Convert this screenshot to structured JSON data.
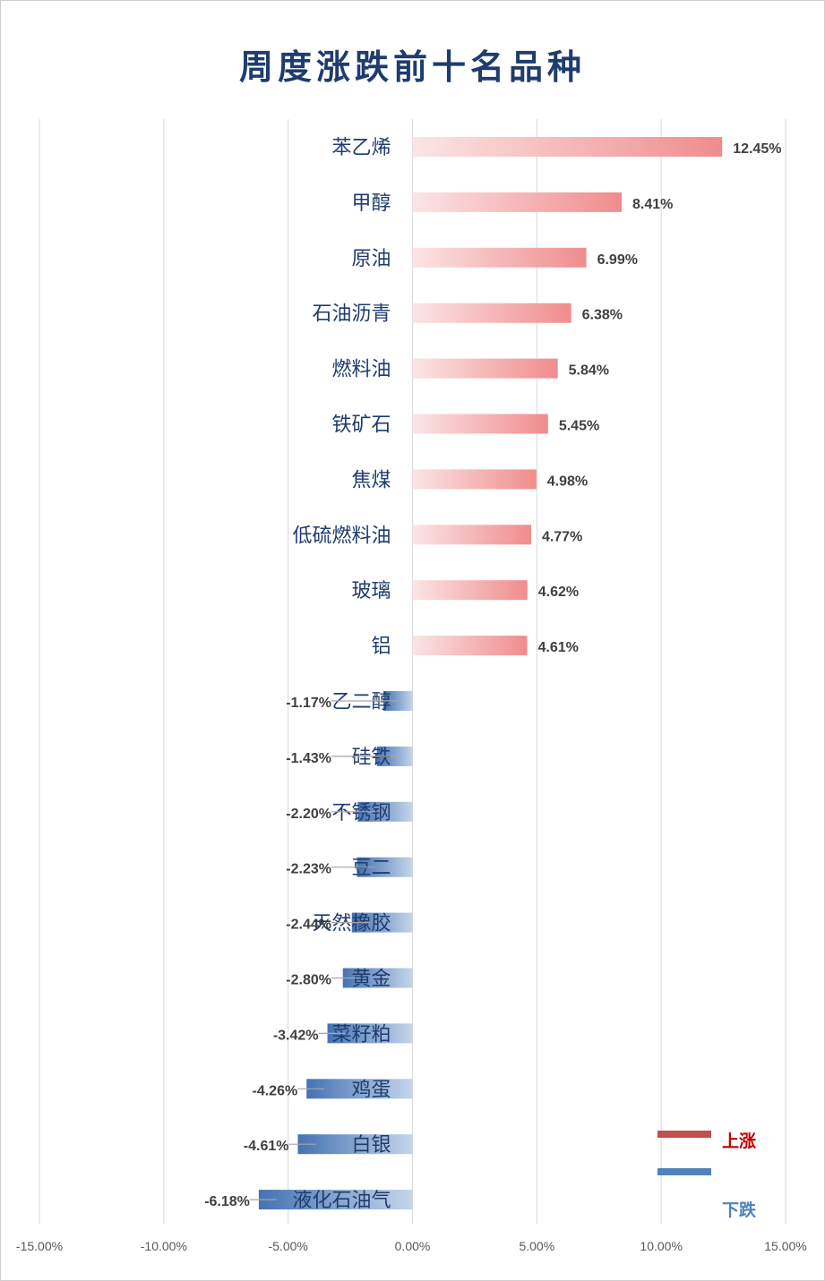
{
  "chart_data": {
    "type": "bar",
    "orientation": "horizontal",
    "title": "周度涨跌前十名品种",
    "categories": [
      "苯乙烯",
      "甲醇",
      "原油",
      "石油沥青",
      "燃料油",
      "铁矿石",
      "焦煤",
      "低硫燃料油",
      "玻璃",
      "铝",
      "乙二醇",
      "硅铁",
      "不锈钢",
      "豆二",
      "天然橡胶",
      "黄金",
      "菜籽粕",
      "鸡蛋",
      "白银",
      "液化石油气"
    ],
    "values": [
      12.45,
      8.41,
      6.99,
      6.38,
      5.84,
      5.45,
      4.98,
      4.77,
      4.62,
      4.61,
      -1.17,
      -1.43,
      -2.2,
      -2.23,
      -2.44,
      -2.8,
      -3.42,
      -4.26,
      -4.61,
      -6.18
    ],
    "value_labels": [
      "12.45%",
      "8.41%",
      "6.99%",
      "6.38%",
      "5.84%",
      "5.45%",
      "4.98%",
      "4.77%",
      "4.62%",
      "4.61%",
      "-1.17%",
      "-1.43%",
      "-2.20%",
      "-2.23%",
      "-2.44%",
      "-2.80%",
      "-3.42%",
      "-4.26%",
      "-4.61%",
      "-6.18%"
    ],
    "xlim": [
      -15,
      15
    ],
    "x_ticks": [
      -15,
      -10,
      -5,
      0,
      5,
      10,
      15
    ],
    "x_tick_labels": [
      "-15.00%",
      "-10.00%",
      "-5.00%",
      "0.00%",
      "5.00%",
      "10.00%",
      "15.00%"
    ],
    "grid": "vertical",
    "legend": {
      "position": "bottom-right",
      "items": [
        {
          "label": "上涨",
          "color": "#c0504d",
          "text_color": "#c00000"
        },
        {
          "label": "下跌",
          "color": "#4f81bd",
          "text_color": "#4f81bd"
        }
      ]
    },
    "colors": {
      "up_light": "#fbe5e6",
      "up_dark": "#f08c8d",
      "down_light": "#c5d5ea",
      "down_dark": "#4472b4"
    }
  }
}
